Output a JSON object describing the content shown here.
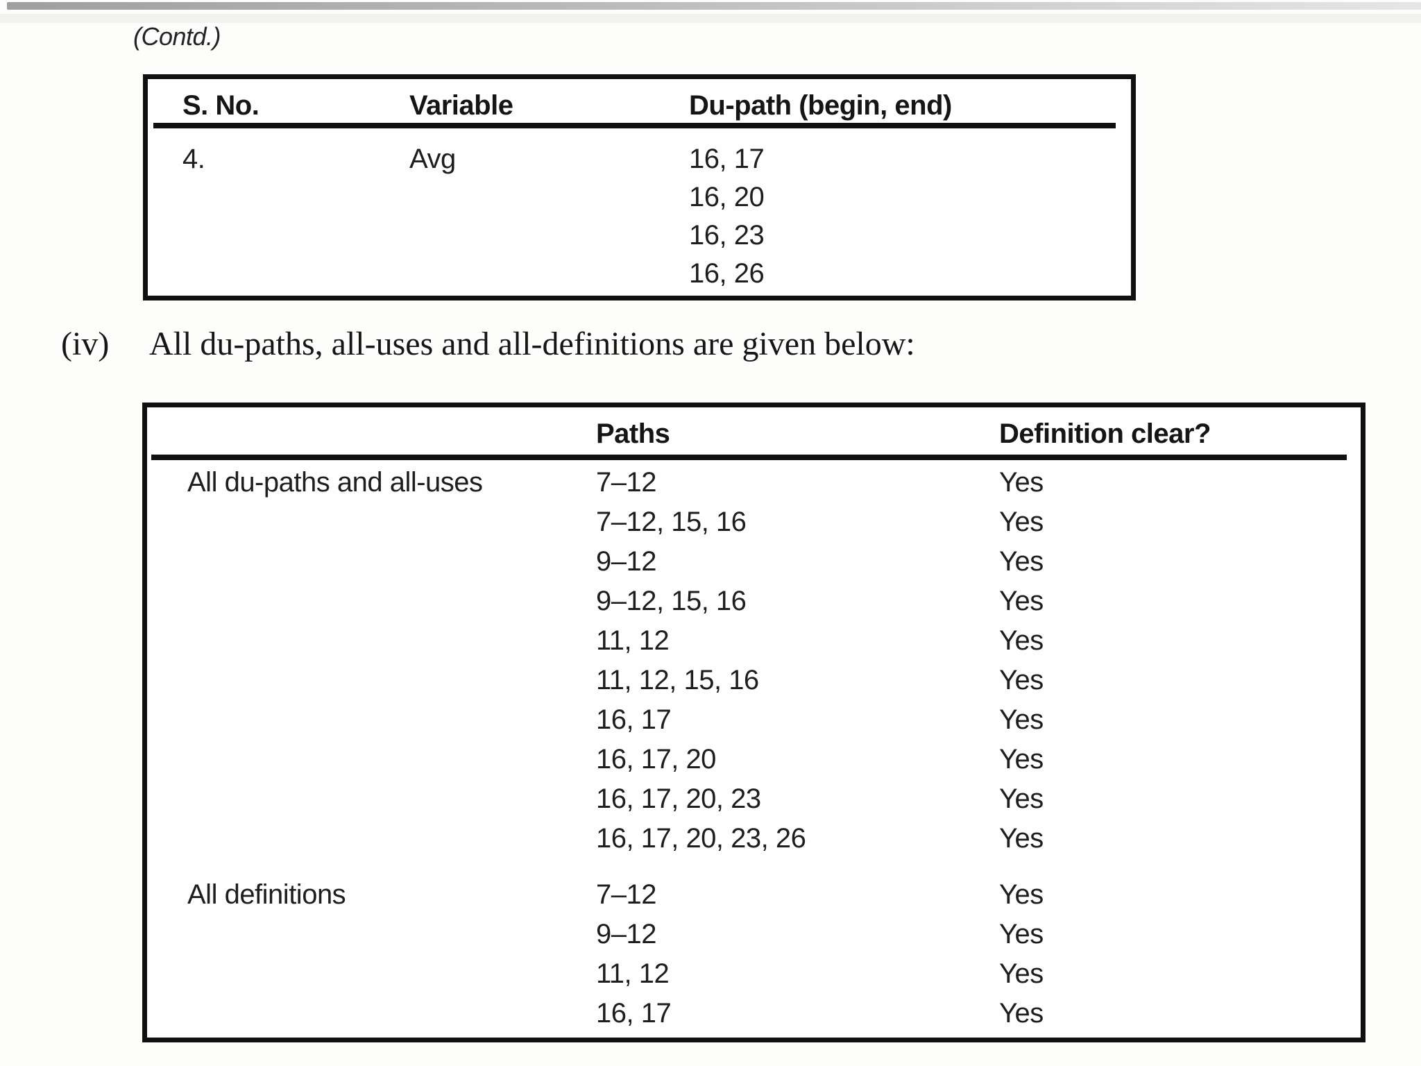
{
  "page": {
    "contd_label": "(Contd.)",
    "intro": {
      "marker": "(iv)",
      "text": "All du-paths, all-uses and all-definitions are given below:"
    }
  },
  "table1": {
    "columns": [
      "S. No.",
      "Variable",
      "Du-path (begin, end)"
    ],
    "rows": [
      {
        "s_no": "4.",
        "variable": "Avg",
        "du_paths": [
          "16, 17",
          "16, 20",
          "16, 23",
          "16, 26"
        ]
      }
    ]
  },
  "table2": {
    "columns": [
      "",
      "Paths",
      "Definition clear?"
    ],
    "groups": [
      {
        "label": "All du-paths and all-uses",
        "rows": [
          {
            "path": "7–12",
            "clear": "Yes"
          },
          {
            "path": "7–12, 15, 16",
            "clear": "Yes"
          },
          {
            "path": "9–12",
            "clear": "Yes"
          },
          {
            "path": "9–12, 15, 16",
            "clear": "Yes"
          },
          {
            "path": "11, 12",
            "clear": "Yes"
          },
          {
            "path": "11, 12, 15, 16",
            "clear": "Yes"
          },
          {
            "path": "16, 17",
            "clear": "Yes"
          },
          {
            "path": "16, 17, 20",
            "clear": "Yes"
          },
          {
            "path": "16, 17, 20, 23",
            "clear": "Yes"
          },
          {
            "path": "16, 17, 20, 23, 26",
            "clear": "Yes"
          }
        ]
      },
      {
        "label": "All definitions",
        "rows": [
          {
            "path": "7–12",
            "clear": "Yes"
          },
          {
            "path": "9–12",
            "clear": "Yes"
          },
          {
            "path": "11, 12",
            "clear": "Yes"
          },
          {
            "path": "16, 17",
            "clear": "Yes"
          }
        ]
      }
    ]
  }
}
